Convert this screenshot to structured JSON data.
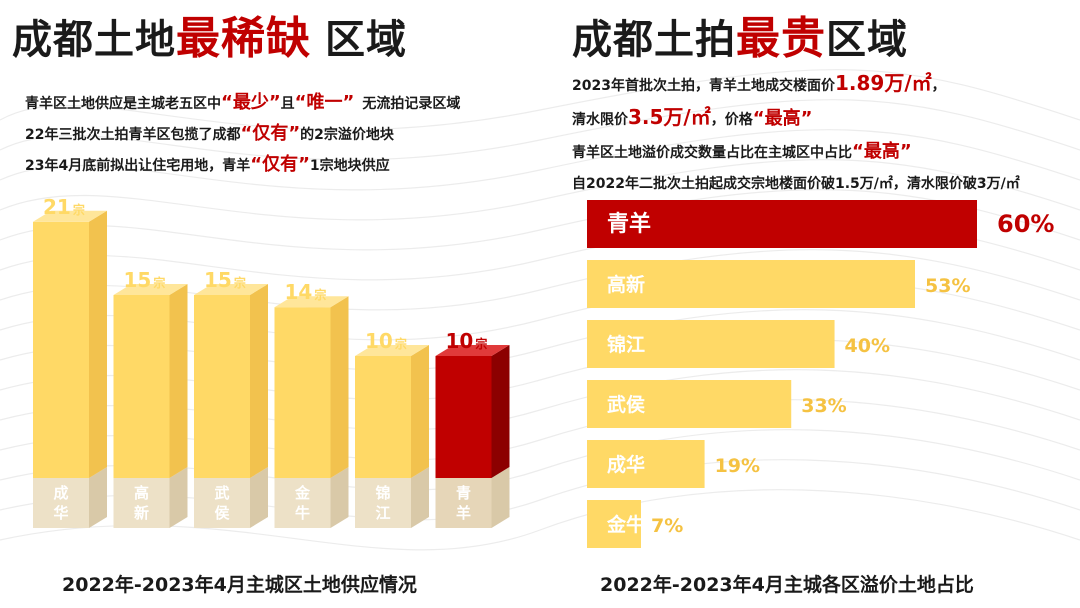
{
  "left": {
    "title": {
      "part1": "成都土地",
      "highlight": "最稀缺",
      "part2": "区域"
    },
    "notes": [
      {
        "pre": "青羊区土地供应是主城老五区中",
        "q1": "“最少”",
        "mid": "且",
        "q2": "“唯一”",
        "post": "无流拍记录区域"
      },
      {
        "pre": "22年三批次土拍青羊区包揽了成都",
        "q1": "“仅有”",
        "post": "的2宗溢价地块"
      },
      {
        "pre": "23年4月底前拟出让住宅用地，青羊",
        "q1": "“仅有”",
        "post": "1宗地块供应"
      }
    ],
    "caption": "2022年-2023年4月主城区土地供应情况"
  },
  "right": {
    "title": {
      "part1": "成都土拍",
      "highlight": "最贵",
      "part2": "区域"
    },
    "notes": [
      {
        "pre": "2023年首批次土拍，青羊土地成交楼面价",
        "big": "1.89万/㎡",
        "post": "，"
      },
      {
        "pre": "清水限价",
        "big": "3.5万/㎡",
        "mid": "，价格",
        "q1": "“最高”"
      },
      {
        "pre": "青羊区土地溢价成交数量占比在主城区中占比",
        "q1": "“最高”"
      },
      {
        "pre": "自2022年二批次土拍起成交宗地楼面价破1.5万/㎡，清水限价破3万/㎡"
      }
    ],
    "caption": "2022年-2023年4月主城各区溢价土地占比"
  },
  "colors": {
    "accent_red": "#c00000",
    "bar_yellow": "#ffd966",
    "bar_yellow_side": "#f2c24e",
    "bar_yellow_top": "#ffe69a",
    "bar_base": "#ede1c7",
    "percent_yellow": "#f5c242"
  },
  "chart_data": [
    {
      "type": "bar",
      "orientation": "vertical",
      "categories": [
        "成华",
        "高新",
        "武侯",
        "金牛",
        "锦江",
        "青羊"
      ],
      "values": [
        21,
        15,
        15,
        14,
        10,
        10
      ],
      "value_labels": [
        "21",
        "15",
        "15",
        "14",
        "10",
        "10"
      ],
      "unit": "宗",
      "highlight_category": "青羊",
      "caption": "2022年-2023年4月主城区土地供应情况",
      "style": "3d"
    },
    {
      "type": "bar",
      "orientation": "horizontal",
      "categories": [
        "青羊",
        "高新",
        "锦江",
        "武侯",
        "成华",
        "金牛"
      ],
      "values": [
        60,
        53,
        40,
        33,
        19,
        7
      ],
      "value_labels": [
        "60%",
        "53%",
        "40%",
        "33%",
        "19%",
        "7%"
      ],
      "unit": "%",
      "xlim": [
        0,
        70
      ],
      "highlight_category": "青羊",
      "caption": "2022年-2023年4月主城各区溢价土地占比"
    }
  ]
}
